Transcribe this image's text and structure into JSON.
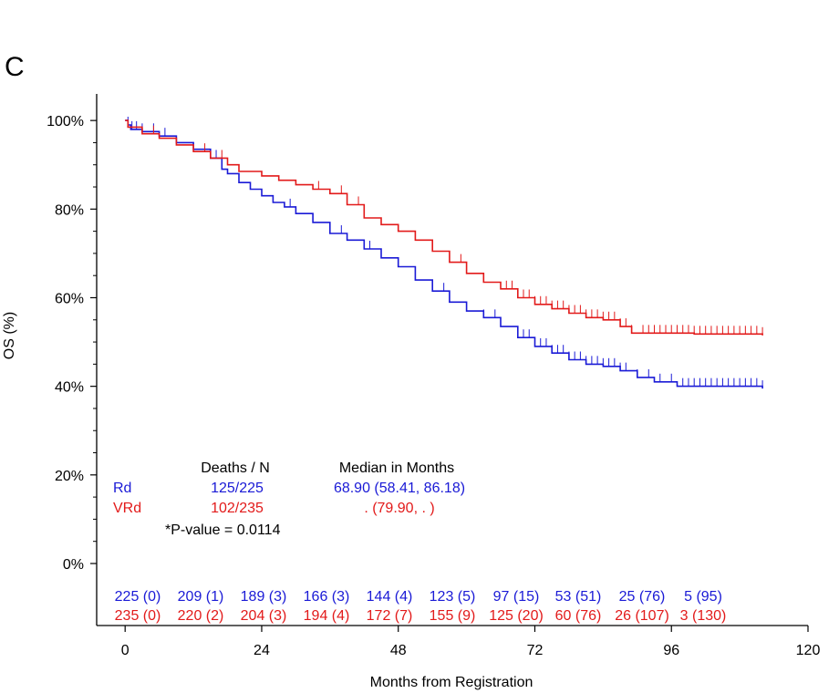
{
  "chart_data": {
    "type": "line",
    "panel_label": "C",
    "xlabel": "Months from Registration",
    "ylabel": "OS (%)",
    "xlim": [
      -5,
      120
    ],
    "ylim": [
      -14,
      106
    ],
    "xticks": [
      0,
      24,
      48,
      72,
      96,
      120
    ],
    "xtick_labels": [
      "0",
      "24",
      "48",
      "72",
      "96",
      "120"
    ],
    "yticks": [
      0,
      20,
      40,
      60,
      80,
      100
    ],
    "ytick_labels": [
      "0%",
      "20%",
      "40%",
      "60%",
      "80%",
      "100%"
    ],
    "series": [
      {
        "name": "Rd",
        "color": "#1a1ad6",
        "points": [
          [
            0,
            100
          ],
          [
            0.5,
            99
          ],
          [
            1,
            98
          ],
          [
            3,
            97.5
          ],
          [
            6,
            96.5
          ],
          [
            9,
            95
          ],
          [
            12,
            93.5
          ],
          [
            15,
            91.5
          ],
          [
            17,
            89
          ],
          [
            18,
            88
          ],
          [
            20,
            86
          ],
          [
            22,
            84.5
          ],
          [
            24,
            83
          ],
          [
            26,
            81.5
          ],
          [
            28,
            80.5
          ],
          [
            30,
            79
          ],
          [
            33,
            77
          ],
          [
            36,
            74.5
          ],
          [
            39,
            73
          ],
          [
            42,
            71
          ],
          [
            45,
            69
          ],
          [
            48,
            67
          ],
          [
            51,
            64
          ],
          [
            54,
            61.5
          ],
          [
            57,
            59
          ],
          [
            60,
            57
          ],
          [
            63,
            55.5
          ],
          [
            66,
            53.5
          ],
          [
            69,
            51
          ],
          [
            72,
            49
          ],
          [
            75,
            47.5
          ],
          [
            78,
            46
          ],
          [
            81,
            45
          ],
          [
            84,
            44.5
          ],
          [
            87,
            43.5
          ],
          [
            90,
            42
          ],
          [
            93,
            41
          ],
          [
            97,
            40
          ],
          [
            100,
            40
          ],
          [
            112,
            39.5
          ]
        ],
        "censor_x": [
          0.5,
          1.2,
          2,
          3,
          5,
          7,
          16,
          29,
          38,
          43,
          56,
          63,
          65,
          70,
          71,
          72,
          73,
          74,
          75,
          76,
          77,
          78,
          79,
          80,
          81,
          82,
          83,
          84,
          85,
          86,
          87,
          88,
          90,
          92,
          94,
          96,
          98,
          99,
          100,
          101,
          102,
          103,
          104,
          105,
          106,
          107,
          108,
          109,
          110,
          111,
          112
        ]
      },
      {
        "name": "VRd",
        "color": "#e21a1a",
        "points": [
          [
            0,
            100
          ],
          [
            0.5,
            98.5
          ],
          [
            3,
            97
          ],
          [
            6,
            96
          ],
          [
            9,
            94.5
          ],
          [
            12,
            93
          ],
          [
            15,
            91.5
          ],
          [
            18,
            90
          ],
          [
            20,
            88.5
          ],
          [
            24,
            87.5
          ],
          [
            27,
            86.5
          ],
          [
            30,
            85.5
          ],
          [
            33,
            84.5
          ],
          [
            36,
            83.5
          ],
          [
            39,
            81
          ],
          [
            42,
            78
          ],
          [
            45,
            76.5
          ],
          [
            48,
            75
          ],
          [
            51,
            73
          ],
          [
            54,
            70.5
          ],
          [
            57,
            68
          ],
          [
            60,
            65.5
          ],
          [
            63,
            63.5
          ],
          [
            66,
            62
          ],
          [
            69,
            60
          ],
          [
            72,
            58.5
          ],
          [
            75,
            57.5
          ],
          [
            78,
            56.5
          ],
          [
            81,
            55.5
          ],
          [
            84,
            55
          ],
          [
            87,
            53.5
          ],
          [
            89,
            52
          ],
          [
            92,
            52
          ],
          [
            100,
            51.8
          ],
          [
            112,
            51.5
          ]
        ],
        "censor_x": [
          5,
          14,
          17,
          34,
          38,
          41,
          54,
          59,
          63,
          67,
          68,
          69,
          70,
          71,
          72,
          73,
          74,
          75,
          76,
          77,
          78,
          79,
          80,
          81,
          82,
          83,
          84,
          85,
          86,
          87,
          88,
          89,
          91,
          92,
          93,
          94,
          95,
          96,
          97,
          98,
          99,
          100,
          101,
          102,
          103,
          104,
          105,
          106,
          107,
          108,
          109,
          110,
          111,
          112
        ]
      }
    ],
    "legend": {
      "headers": [
        "Deaths / N",
        "Median in Months"
      ],
      "rows": [
        {
          "group": "Rd",
          "deaths": "125/225",
          "median": "68.90 (58.41, 86.18)",
          "color": "#1a1ad6"
        },
        {
          "group": "VRd",
          "deaths": "102/235",
          "median": ".  (79.90,  .  )",
          "color": "#e21a1a"
        }
      ],
      "pvalue": "*P-value = 0.0114"
    },
    "risk_table": {
      "times": [
        0,
        12,
        24,
        36,
        48,
        60,
        72,
        84,
        96,
        108
      ],
      "rows": [
        {
          "group": "Rd",
          "color": "#1a1ad6",
          "values": [
            "225 (0)",
            "209 (1)",
            "189 (3)",
            "166 (3)",
            "144 (4)",
            "123 (5)",
            "97 (15)",
            "53 (51)",
            "25 (76)",
            "5 (95)"
          ]
        },
        {
          "group": "VRd",
          "color": "#e21a1a",
          "values": [
            "235 (0)",
            "220 (2)",
            "204 (3)",
            "194 (4)",
            "172 (7)",
            "155 (9)",
            "125 (20)",
            "60 (76)",
            "26 (107)",
            "3 (130)"
          ]
        }
      ]
    }
  }
}
